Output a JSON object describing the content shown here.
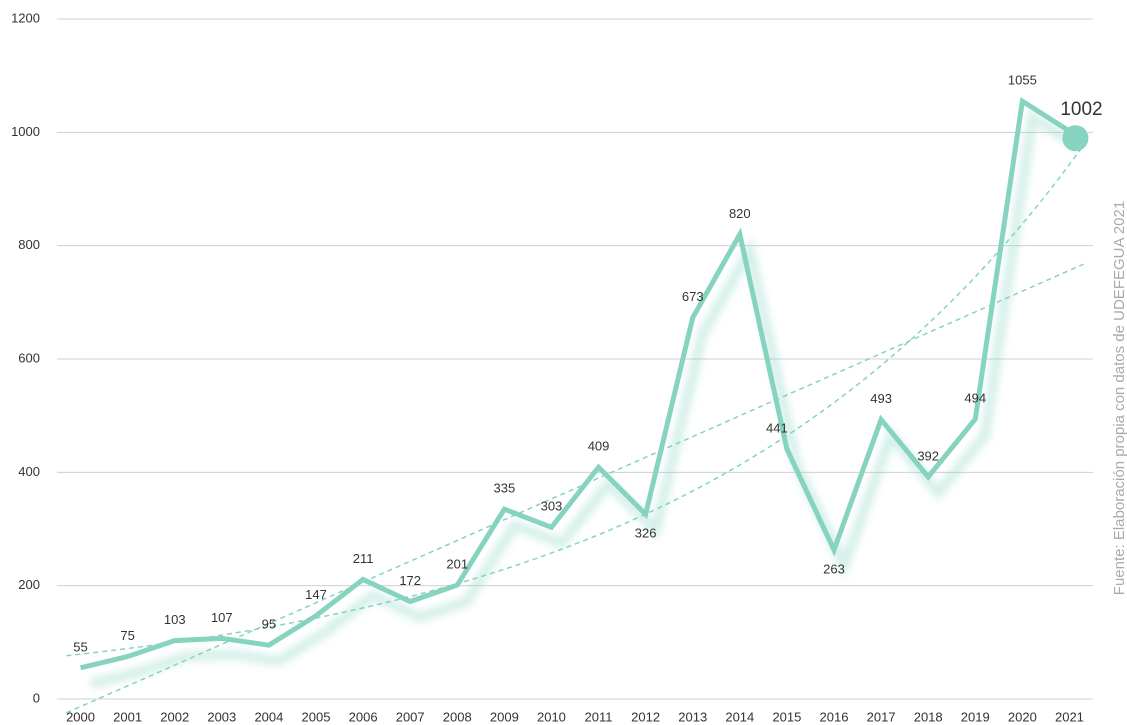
{
  "chart_data": {
    "type": "line",
    "categories": [
      "2000",
      "2001",
      "2002",
      "2003",
      "2004",
      "2005",
      "2006",
      "2007",
      "2008",
      "2009",
      "2010",
      "2011",
      "2012",
      "2013",
      "2014",
      "2015",
      "2016",
      "2017",
      "2018",
      "2019",
      "2020",
      "2021"
    ],
    "values": [
      55,
      75,
      103,
      107,
      95,
      147,
      211,
      172,
      201,
      335,
      303,
      409,
      326,
      673,
      820,
      441,
      263,
      493,
      392,
      494,
      1055,
      1002
    ],
    "color": "#86d3c0",
    "ylim": [
      0,
      1200
    ],
    "yticks": [
      0,
      200,
      400,
      600,
      800,
      1000,
      1200
    ],
    "grid": true,
    "source": "Fuente: Elaboración propia con datos de UDEFEGUA 2021"
  }
}
